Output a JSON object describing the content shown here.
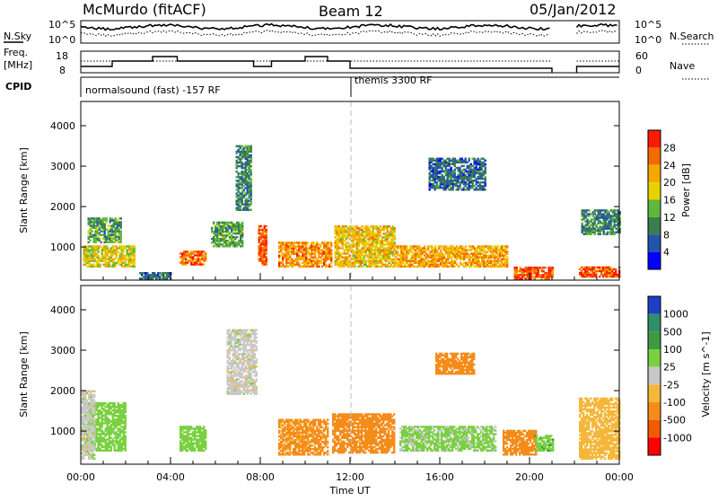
{
  "header": {
    "title": "McMurdo (fitACF)",
    "beam": "Beam 12",
    "date": "05/Jan/2012"
  },
  "strips": {
    "noise": {
      "left_label": "N.Sky",
      "right_label": "N.Search",
      "left_ticks": [
        "10^5",
        "10^0"
      ],
      "right_ticks": [
        "10^5",
        "10^0"
      ]
    },
    "freq": {
      "left_label": "Freq.",
      "left_unit": "[MHz]",
      "right_label": "Nave",
      "left_ticks": [
        "18",
        "8"
      ],
      "right_ticks": [
        "60",
        "0"
      ]
    },
    "cpid": {
      "label": "CPID",
      "modes": [
        "normalsound (fast) -157 RF",
        "themis 3300 RF"
      ]
    }
  },
  "xaxis": {
    "label": "Time UT",
    "ticks": [
      "00:00",
      "04:00",
      "08:00",
      "12:00",
      "16:00",
      "20:00",
      "00:00"
    ]
  },
  "power_panel": {
    "ylabel": "Slant Range [km]",
    "yticks": [
      "1000",
      "2000",
      "3000",
      "4000"
    ],
    "colorbar_label": "Power [dB]",
    "colorbar_ticks": [
      "4",
      "8",
      "12",
      "16",
      "20",
      "24",
      "28"
    ],
    "colors": [
      "#0000ff",
      "#2255aa",
      "#3c7d50",
      "#5fb83c",
      "#e6d200",
      "#f7a800",
      "#f56a00",
      "#ff1a00"
    ]
  },
  "velocity_panel": {
    "ylabel": "Slant Range [km]",
    "yticks": [
      "1000",
      "2000",
      "3000",
      "4000"
    ],
    "colorbar_label": "Velocity [m s^-1]",
    "colorbar_ticks": [
      "1000",
      "500",
      "100",
      "25",
      "-25",
      "-100",
      "-500",
      "-1000"
    ],
    "colors": [
      "#1c3fc4",
      "#2e8f6a",
      "#3f9b3f",
      "#7ad040",
      "#c8c8c8",
      "#f5b73a",
      "#f58c1a",
      "#f05a00",
      "#ff0000"
    ]
  },
  "chart_data": {
    "type": "heatmap",
    "description_axes": {
      "x": "Time UT",
      "x_range_hours": [
        0,
        24
      ],
      "y": "Slant Range [km]",
      "y_range_km": [
        180,
        4600
      ]
    },
    "power_regions_dB": [
      {
        "t": [
          0.1,
          2.4
        ],
        "r": [
          500,
          1000
        ],
        "value": 18
      },
      {
        "t": [
          0.3,
          1.8
        ],
        "r": [
          1100,
          1700
        ],
        "value": 12
      },
      {
        "t": [
          2.6,
          4.0
        ],
        "r": [
          200,
          350
        ],
        "value": 8
      },
      {
        "t": [
          4.4,
          5.6
        ],
        "r": [
          550,
          900
        ],
        "value": 26
      },
      {
        "t": [
          5.8,
          7.2
        ],
        "r": [
          1000,
          1600
        ],
        "value": 12
      },
      {
        "t": [
          6.9,
          7.6
        ],
        "r": [
          1900,
          3500
        ],
        "value": 10
      },
      {
        "t": [
          7.9,
          8.3
        ],
        "r": [
          550,
          1500
        ],
        "value": 28
      },
      {
        "t": [
          8.8,
          11.2
        ],
        "r": [
          500,
          1100
        ],
        "value": 24
      },
      {
        "t": [
          11.3,
          14.0
        ],
        "r": [
          500,
          1500
        ],
        "value": 20
      },
      {
        "t": [
          14.0,
          19.0
        ],
        "r": [
          500,
          1000
        ],
        "value": 22
      },
      {
        "t": [
          15.5,
          18.0
        ],
        "r": [
          2400,
          3200
        ],
        "value": 8
      },
      {
        "t": [
          19.3,
          21.0
        ],
        "r": [
          200,
          500
        ],
        "value": 28
      },
      {
        "t": [
          22.2,
          24.0
        ],
        "r": [
          250,
          500
        ],
        "value": 27
      },
      {
        "t": [
          22.3,
          24.0
        ],
        "r": [
          1300,
          1900
        ],
        "value": 10
      }
    ],
    "velocity_regions_ms": [
      {
        "t": [
          0.1,
          2.0
        ],
        "r": [
          500,
          1700
        ],
        "value": 60
      },
      {
        "t": [
          0.0,
          0.6
        ],
        "r": [
          300,
          2000
        ],
        "value": 0
      },
      {
        "t": [
          4.4,
          5.6
        ],
        "r": [
          500,
          1100
        ],
        "value": 60
      },
      {
        "t": [
          6.5,
          7.8
        ],
        "r": [
          1900,
          3500
        ],
        "value": 0
      },
      {
        "t": [
          8.8,
          11.0
        ],
        "r": [
          400,
          1300
        ],
        "value": -120
      },
      {
        "t": [
          11.2,
          14.0
        ],
        "r": [
          450,
          1400
        ],
        "value": -150
      },
      {
        "t": [
          14.2,
          18.5
        ],
        "r": [
          500,
          1100
        ],
        "value": 40
      },
      {
        "t": [
          15.8,
          17.5
        ],
        "r": [
          2400,
          2900
        ],
        "value": -150
      },
      {
        "t": [
          18.8,
          20.3
        ],
        "r": [
          400,
          1000
        ],
        "value": -400
      },
      {
        "t": [
          20.2,
          21.0
        ],
        "r": [
          500,
          900
        ],
        "value": 80
      },
      {
        "t": [
          22.2,
          24.0
        ],
        "r": [
          300,
          1800
        ],
        "value": -60
      }
    ],
    "data_gap_hours": [
      [
        21.0,
        22.1
      ]
    ],
    "mode_change_hour": 12.1
  }
}
